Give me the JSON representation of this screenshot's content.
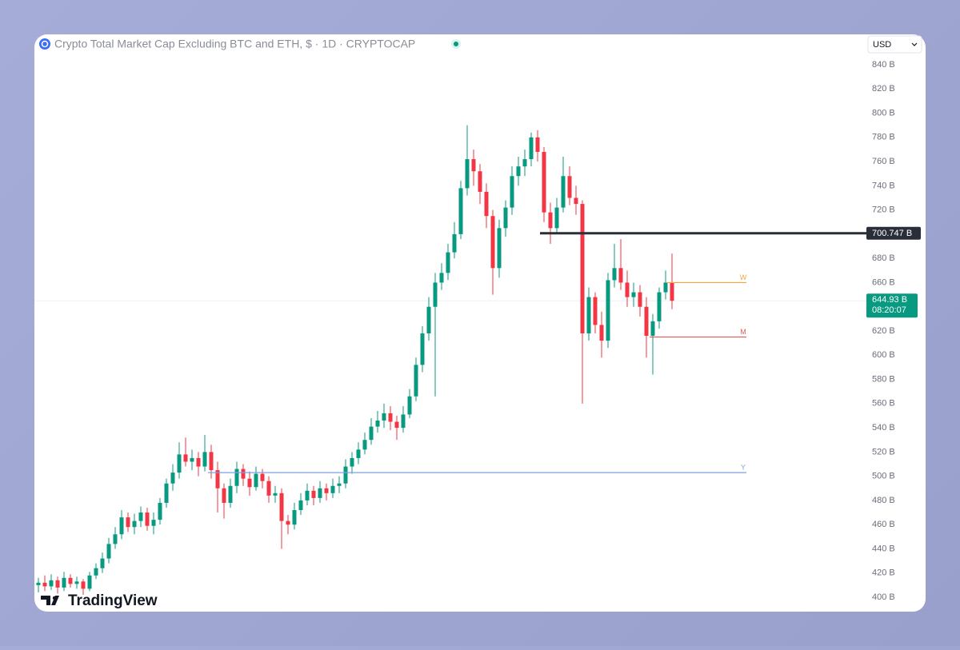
{
  "chart_data": {
    "type": "candlestick",
    "title": "Crypto Total Market Cap Excluding BTC and ETH, $ · 1D · CRYPTOCAP",
    "currency": "USD",
    "brand": "TradingView",
    "up_color": "#089981",
    "down_color": "#f23645",
    "ylim": [
      400,
      840
    ],
    "yticks": [
      {
        "value": 400,
        "label": "400 B"
      },
      {
        "value": 420,
        "label": "420 B"
      },
      {
        "value": 440,
        "label": "440 B"
      },
      {
        "value": 460,
        "label": "460 B"
      },
      {
        "value": 480,
        "label": "480 B"
      },
      {
        "value": 500,
        "label": "500 B"
      },
      {
        "value": 520,
        "label": "520 B"
      },
      {
        "value": 540,
        "label": "540 B"
      },
      {
        "value": 560,
        "label": "560 B"
      },
      {
        "value": 580,
        "label": "580 B"
      },
      {
        "value": 600,
        "label": "600 B"
      },
      {
        "value": 620,
        "label": "620 B"
      },
      {
        "value": 640,
        "label": "640 B"
      },
      {
        "value": 660,
        "label": "660 B"
      },
      {
        "value": 680,
        "label": "680 B"
      },
      {
        "value": 700,
        "label": "700 B"
      },
      {
        "value": 720,
        "label": "720 B"
      },
      {
        "value": 740,
        "label": "740 B"
      },
      {
        "value": 760,
        "label": "760 B"
      },
      {
        "value": 780,
        "label": "780 B"
      },
      {
        "value": 800,
        "label": "800 B"
      },
      {
        "value": 820,
        "label": "820 B"
      },
      {
        "value": 840,
        "label": "840 B"
      }
    ],
    "candles": [
      [
        410,
        416,
        404,
        412
      ],
      [
        412,
        418,
        405,
        409
      ],
      [
        409,
        419,
        406,
        414
      ],
      [
        414,
        417,
        403,
        408
      ],
      [
        408,
        421,
        405,
        416
      ],
      [
        416,
        419,
        408,
        411
      ],
      [
        411,
        417,
        407,
        413
      ],
      [
        413,
        415,
        402,
        407
      ],
      [
        407,
        421,
        405,
        418
      ],
      [
        418,
        428,
        415,
        424
      ],
      [
        424,
        437,
        420,
        432
      ],
      [
        432,
        449,
        428,
        444
      ],
      [
        444,
        458,
        440,
        452
      ],
      [
        452,
        472,
        448,
        466
      ],
      [
        466,
        470,
        454,
        458
      ],
      [
        458,
        469,
        452,
        463
      ],
      [
        463,
        475,
        458,
        470
      ],
      [
        470,
        474,
        455,
        459
      ],
      [
        459,
        470,
        452,
        464
      ],
      [
        464,
        482,
        460,
        478
      ],
      [
        478,
        498,
        474,
        494
      ],
      [
        494,
        510,
        488,
        503
      ],
      [
        503,
        528,
        498,
        518
      ],
      [
        518,
        532,
        508,
        512
      ],
      [
        512,
        522,
        505,
        515
      ],
      [
        515,
        520,
        500,
        508
      ],
      [
        508,
        534,
        504,
        520
      ],
      [
        520,
        526,
        498,
        505
      ],
      [
        505,
        512,
        470,
        490
      ],
      [
        490,
        494,
        465,
        478
      ],
      [
        478,
        498,
        474,
        492
      ],
      [
        492,
        512,
        486,
        506
      ],
      [
        506,
        510,
        492,
        498
      ],
      [
        498,
        504,
        484,
        491
      ],
      [
        491,
        508,
        488,
        502
      ],
      [
        502,
        506,
        490,
        496
      ],
      [
        496,
        500,
        478,
        484
      ],
      [
        484,
        492,
        478,
        486
      ],
      [
        486,
        490,
        440,
        463
      ],
      [
        463,
        468,
        452,
        460
      ],
      [
        460,
        478,
        456,
        472
      ],
      [
        472,
        486,
        468,
        480
      ],
      [
        480,
        494,
        476,
        488
      ],
      [
        488,
        492,
        476,
        482
      ],
      [
        482,
        496,
        478,
        490
      ],
      [
        490,
        494,
        480,
        486
      ],
      [
        486,
        498,
        482,
        492
      ],
      [
        492,
        500,
        486,
        494
      ],
      [
        494,
        514,
        490,
        508
      ],
      [
        508,
        520,
        502,
        515
      ],
      [
        515,
        528,
        510,
        522
      ],
      [
        522,
        536,
        518,
        530
      ],
      [
        530,
        548,
        526,
        541
      ],
      [
        541,
        554,
        536,
        546
      ],
      [
        546,
        560,
        540,
        552
      ],
      [
        552,
        558,
        538,
        545
      ],
      [
        545,
        550,
        530,
        540
      ],
      [
        540,
        558,
        536,
        551
      ],
      [
        551,
        572,
        548,
        566
      ],
      [
        566,
        598,
        562,
        592
      ],
      [
        592,
        624,
        586,
        618
      ],
      [
        618,
        648,
        612,
        640
      ],
      [
        640,
        668,
        566,
        660
      ],
      [
        660,
        676,
        654,
        668
      ],
      [
        668,
        692,
        662,
        685
      ],
      [
        685,
        710,
        680,
        700
      ],
      [
        700,
        744,
        696,
        738
      ],
      [
        738,
        790,
        732,
        762
      ],
      [
        762,
        770,
        740,
        752
      ],
      [
        752,
        758,
        725,
        735
      ],
      [
        735,
        742,
        705,
        715
      ],
      [
        715,
        720,
        650,
        672
      ],
      [
        672,
        712,
        664,
        705
      ],
      [
        705,
        728,
        698,
        722
      ],
      [
        722,
        756,
        716,
        748
      ],
      [
        748,
        764,
        740,
        756
      ],
      [
        756,
        770,
        748,
        762
      ],
      [
        762,
        784,
        756,
        780
      ],
      [
        780,
        786,
        760,
        768
      ],
      [
        768,
        772,
        710,
        718
      ],
      [
        718,
        726,
        692,
        705
      ],
      [
        705,
        730,
        700,
        722
      ],
      [
        722,
        764,
        718,
        748
      ],
      [
        748,
        756,
        724,
        730
      ],
      [
        730,
        740,
        716,
        725
      ],
      [
        725,
        728,
        560,
        618
      ],
      [
        618,
        656,
        612,
        648
      ],
      [
        648,
        652,
        618,
        625
      ],
      [
        625,
        636,
        598,
        612
      ],
      [
        612,
        668,
        606,
        662
      ],
      [
        662,
        692,
        656,
        672
      ],
      [
        672,
        696,
        654,
        660
      ],
      [
        660,
        670,
        640,
        648
      ],
      [
        648,
        660,
        640,
        652
      ],
      [
        652,
        658,
        632,
        640
      ],
      [
        640,
        648,
        598,
        616
      ],
      [
        616,
        634,
        584,
        628
      ],
      [
        628,
        656,
        622,
        652
      ],
      [
        652,
        670,
        646,
        660
      ],
      [
        660,
        684,
        638,
        645
      ]
    ],
    "levels": [
      {
        "name": "W",
        "value": 660,
        "color": "#f7a440"
      },
      {
        "name": "M",
        "value": 615,
        "color": "#e35a5a"
      },
      {
        "name": "Y",
        "value": 503,
        "color": "#7f9fe0"
      }
    ],
    "marked_level": {
      "value": 700.747,
      "label": "700.747 B",
      "color": "#2a2e39"
    },
    "last_price": {
      "value": 644.93,
      "label": "644.93 B",
      "countdown": "08:20:07",
      "color": "#089981"
    }
  }
}
